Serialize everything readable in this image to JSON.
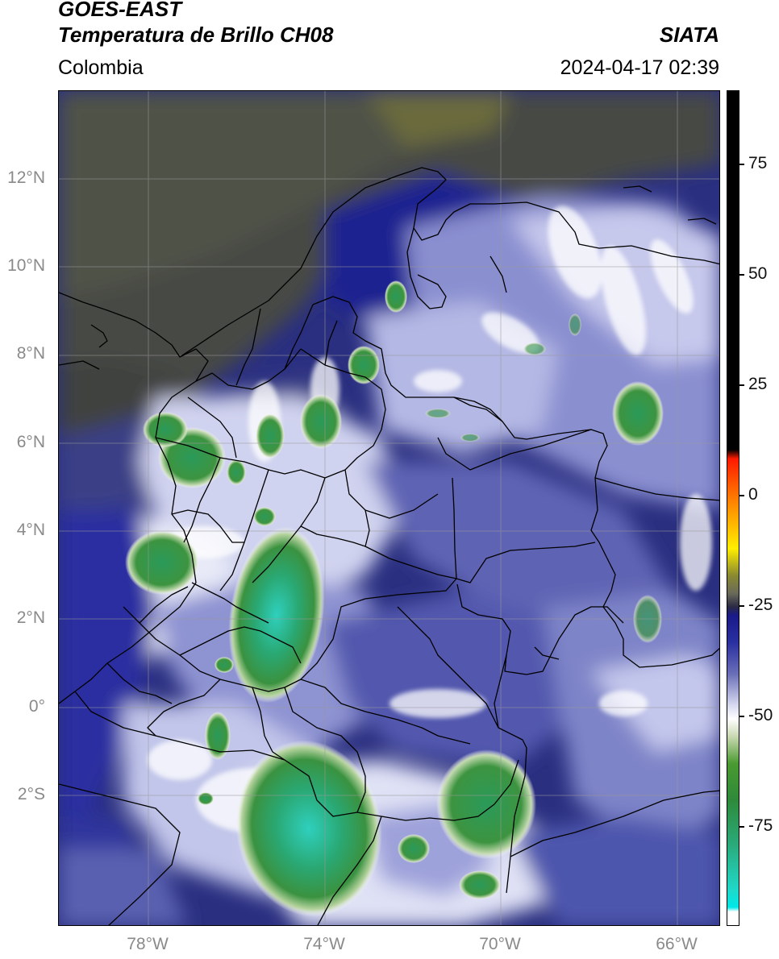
{
  "header": {
    "satellite": "GOES-EAST",
    "product": "Temperatura de Brillo CH08",
    "agency": "SIATA",
    "region": "Colombia",
    "datetime": "2024-04-17 02:39"
  },
  "axes": {
    "lat_labels": [
      "12°N",
      "10°N",
      "8°N",
      "6°N",
      "4°N",
      "2°N",
      "0°",
      "2°S"
    ],
    "lon_labels": [
      "78°W",
      "74°W",
      "70°W",
      "66°W"
    ]
  },
  "colorbar": {
    "labels": [
      "75",
      "50",
      "25",
      "0",
      "-25",
      "-50",
      "-75"
    ],
    "stops": [
      {
        "v": 90,
        "c": "#000000"
      },
      {
        "v": 10,
        "c": "#000000"
      },
      {
        "v": 8,
        "c": "#ff1a00"
      },
      {
        "v": -2,
        "c": "#ff8800"
      },
      {
        "v": -12,
        "c": "#ffee00"
      },
      {
        "v": -18,
        "c": "#8a8a30"
      },
      {
        "v": -22,
        "c": "#6a6a5a"
      },
      {
        "v": -25,
        "c": "#2a2a44"
      },
      {
        "v": -27,
        "c": "#1a1a8a"
      },
      {
        "v": -33,
        "c": "#2a30a0"
      },
      {
        "v": -40,
        "c": "#6a6fb8"
      },
      {
        "v": -47,
        "c": "#d8daf0"
      },
      {
        "v": -50,
        "c": "#ffffff"
      },
      {
        "v": -54,
        "c": "#c8d8b0"
      },
      {
        "v": -60,
        "c": "#4a9a30"
      },
      {
        "v": -68,
        "c": "#2e8a3a"
      },
      {
        "v": -78,
        "c": "#2aaa7a"
      },
      {
        "v": -88,
        "c": "#20d8c8"
      },
      {
        "v": -92,
        "c": "#00e8e8"
      },
      {
        "v": -93,
        "c": "#ffffff"
      },
      {
        "v": -96,
        "c": "#ffffff"
      }
    ]
  },
  "map_colors": {
    "background": "#2a2e78",
    "north_olive": "#4a4c40",
    "deep_blue": "#1c208a",
    "mid_blue": "#5a5fb0",
    "cloud_white": "#e4e6f4",
    "storm_green": "#3a9a40",
    "storm_core": "#30c8b4",
    "borders": "#000000",
    "gridlines": "#9a9a9a"
  }
}
